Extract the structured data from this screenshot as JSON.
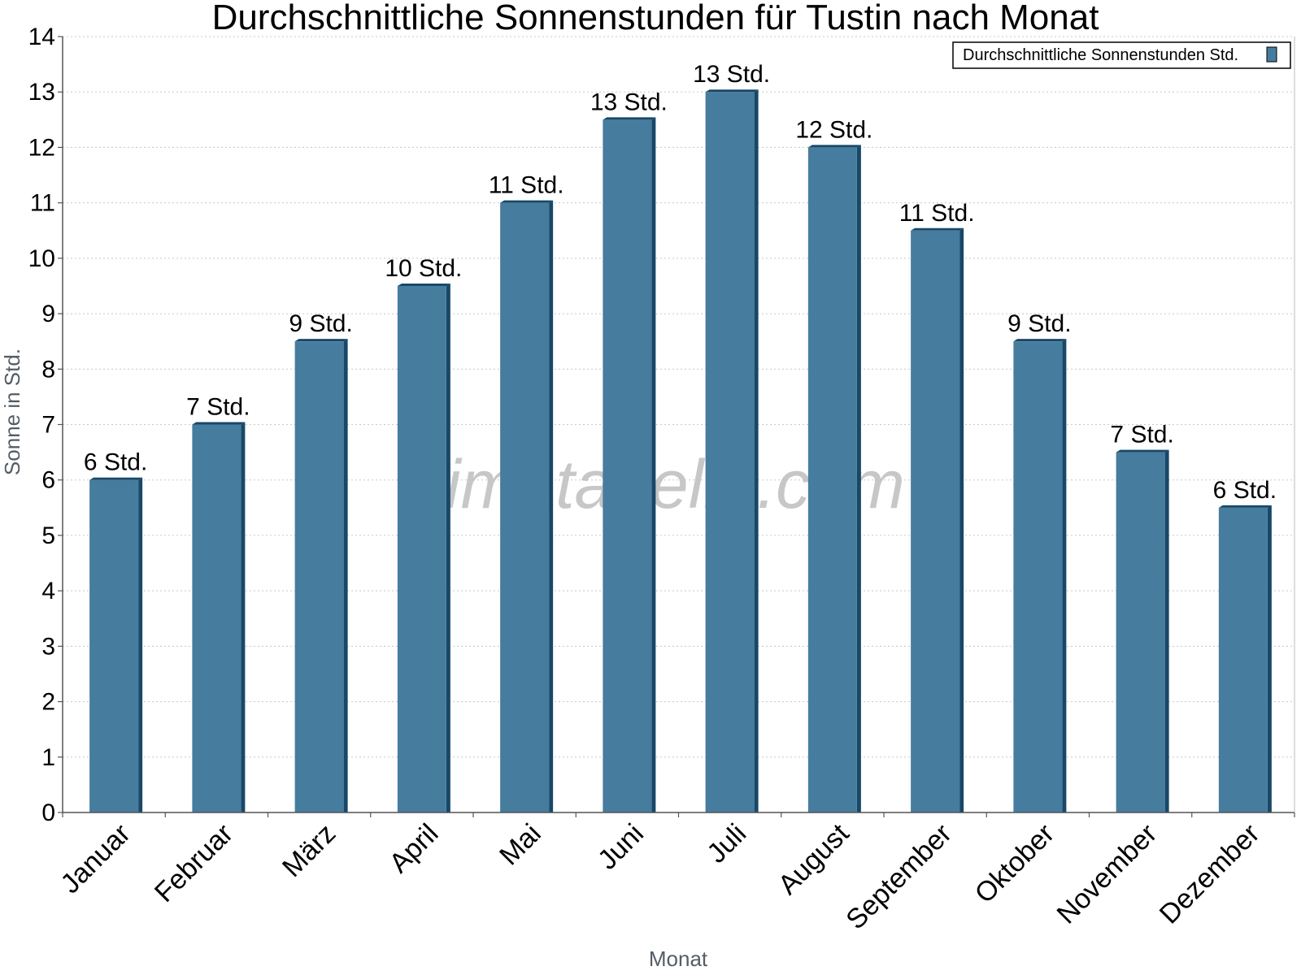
{
  "chart_data": {
    "type": "bar",
    "title": "Durchschnittliche Sonnenstunden für Tustin nach Monat",
    "xlabel": "Monat",
    "ylabel": "Sonne in Std.",
    "ylim": [
      0,
      14
    ],
    "yticks": [
      "0",
      "1",
      "2",
      "3",
      "4",
      "5",
      "6",
      "7",
      "8",
      "9",
      "10",
      "11",
      "12",
      "13",
      "14"
    ],
    "grid": true,
    "legend_position": "top-right",
    "categories": [
      "Januar",
      "Februar",
      "März",
      "April",
      "Mai",
      "Juni",
      "Juli",
      "August",
      "September",
      "Oktober",
      "November",
      "Dezember"
    ],
    "series": [
      {
        "name": "Durchschnittliche Sonnenstunden Std.",
        "color": "#467c9e",
        "values": [
          6,
          7,
          8.5,
          9.5,
          11,
          12.5,
          13,
          12,
          10.5,
          8.5,
          6.5,
          5.5
        ],
        "labels": [
          "6 Std.",
          "7 Std.",
          "9 Std.",
          "10 Std.",
          "11 Std.",
          "13 Std.",
          "13 Std.",
          "12 Std.",
          "11 Std.",
          "9 Std.",
          "7 Std.",
          "6 Std."
        ]
      }
    ]
  },
  "watermark": "klimatabelle.com"
}
